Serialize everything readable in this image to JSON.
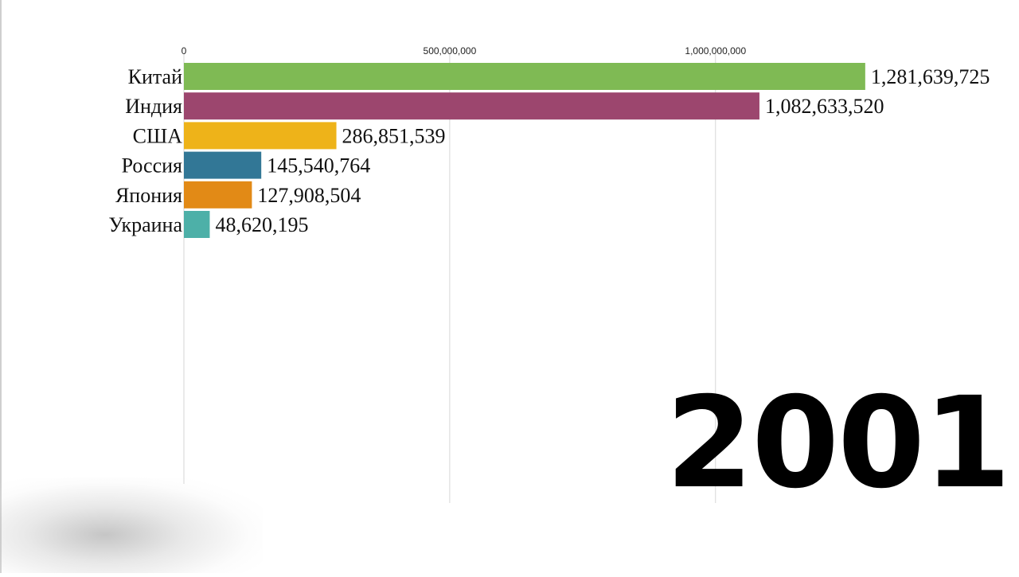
{
  "chart_data": {
    "type": "bar",
    "orientation": "horizontal",
    "categories": [
      "Китай",
      "Индия",
      "США",
      "Россия",
      "Япония",
      "Украина"
    ],
    "values": [
      1281639725,
      1082633520,
      286851539,
      145540764,
      127908504,
      48620195
    ],
    "value_labels": [
      "1,281,639,725",
      "1,082,633,520",
      "286,851,539",
      "145,540,764",
      "127,908,504",
      "48,620,195"
    ],
    "colors": [
      "#7fba54",
      "#9c466e",
      "#eeb319",
      "#327796",
      "#e28a16",
      "#4db0a8"
    ],
    "xticks": [
      0,
      500000000,
      1000000000
    ],
    "xtick_labels": [
      "0",
      "500,000,000",
      "1,000,000,000"
    ],
    "xlim": [
      0,
      1505000000
    ],
    "grid": true,
    "legend": "none",
    "title": "",
    "xlabel": "",
    "ylabel": ""
  },
  "year": "2001"
}
